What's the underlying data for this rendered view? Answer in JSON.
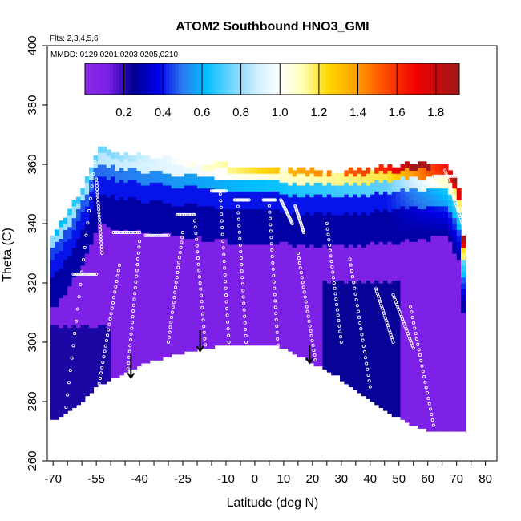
{
  "chart_data": {
    "type": "heatmap",
    "title": "ATOM2 Southbound HNO3_GMI",
    "flights_note": "Flts: 2,3,4,5,6",
    "dates_note": "MMDD: 0129,0201,0203,0205,0210",
    "xlabel": "Latitude (deg N)",
    "ylabel": "Theta (C)",
    "xlim": [
      -72,
      84
    ],
    "ylim": [
      260,
      400
    ],
    "x_ticks": [
      -70,
      -65,
      -60,
      -55,
      -50,
      -45,
      -40,
      -35,
      -30,
      -25,
      -20,
      -15,
      -10,
      -5,
      0,
      5,
      10,
      15,
      20,
      25,
      30,
      35,
      40,
      45,
      50,
      55,
      60,
      65,
      70,
      75,
      80
    ],
    "x_tick_labels": [
      "-70",
      "",
      "",
      "-55",
      "",
      "",
      "-40",
      "",
      "",
      "-25",
      "",
      "",
      "-10",
      "",
      "0",
      "",
      "10",
      "",
      "20",
      "",
      "30",
      "",
      "40",
      "",
      "50",
      "",
      "60",
      "",
      "70",
      "",
      "80"
    ],
    "y_ticks": [
      260,
      280,
      300,
      320,
      340,
      360,
      380,
      400
    ],
    "y_tick_labels": [
      "260",
      "280",
      "300",
      "320",
      "340",
      "360",
      "380",
      "400"
    ],
    "colorbar": {
      "range": [
        0,
        1.92
      ],
      "ticks": [
        0.2,
        0.4,
        0.6,
        0.8,
        1.0,
        1.2,
        1.4,
        1.6,
        1.8
      ],
      "tick_labels": [
        "0.2",
        "0.4",
        "0.6",
        "0.8",
        "1.0",
        "1.2",
        "1.4",
        "1.6",
        "1.8"
      ],
      "colors": [
        {
          "v": 0.0,
          "c": "#8a2be2"
        },
        {
          "v": 0.12,
          "c": "#7a1fe8"
        },
        {
          "v": 0.25,
          "c": "#000090"
        },
        {
          "v": 0.38,
          "c": "#0000e8"
        },
        {
          "v": 0.5,
          "c": "#2a7af0"
        },
        {
          "v": 0.62,
          "c": "#00bfff"
        },
        {
          "v": 0.75,
          "c": "#6fd3ff"
        },
        {
          "v": 0.88,
          "c": "#cdeeff"
        },
        {
          "v": 1.0,
          "c": "#ffffff"
        },
        {
          "v": 1.12,
          "c": "#ffffb0"
        },
        {
          "v": 1.25,
          "c": "#ffd700"
        },
        {
          "v": 1.4,
          "c": "#ff9a00"
        },
        {
          "v": 1.55,
          "c": "#ff4500"
        },
        {
          "v": 1.7,
          "c": "#f00000"
        },
        {
          "v": 1.92,
          "c": "#9a1a1a"
        }
      ]
    },
    "floor_boundary": [
      [
        -71,
        274
      ],
      [
        -61,
        280
      ],
      [
        -55,
        286
      ],
      [
        -48,
        289
      ],
      [
        -40,
        293
      ],
      [
        -30,
        296
      ],
      [
        -20,
        298
      ],
      [
        -10,
        300
      ],
      [
        0,
        299
      ],
      [
        8,
        299
      ],
      [
        14,
        296
      ],
      [
        20,
        293
      ],
      [
        28,
        289
      ],
      [
        36,
        283
      ],
      [
        45,
        277
      ],
      [
        55,
        272
      ],
      [
        62,
        270
      ],
      [
        70,
        270
      ],
      [
        72,
        270
      ]
    ],
    "ceiling_boundary": [
      [
        -71,
        336
      ],
      [
        -66,
        342
      ],
      [
        -60,
        352
      ],
      [
        -55,
        365
      ],
      [
        -50,
        363
      ],
      [
        -40,
        362
      ],
      [
        -30,
        361
      ],
      [
        -20,
        360
      ],
      [
        -10,
        359
      ],
      [
        0,
        358
      ],
      [
        10,
        358
      ],
      [
        20,
        357
      ],
      [
        30,
        357
      ],
      [
        40,
        358
      ],
      [
        50,
        359
      ],
      [
        60,
        360
      ],
      [
        66,
        360
      ],
      [
        70,
        352
      ],
      [
        72,
        330
      ]
    ],
    "arrows": [
      {
        "lat": -43,
        "theta_top": 296,
        "theta_bottom": 288
      },
      {
        "lat": -19,
        "theta_top": 304,
        "theta_bottom": 297
      },
      {
        "lat": 19,
        "theta_top": 299,
        "theta_bottom": 293
      }
    ],
    "flight_tracks": [
      {
        "kind": "profile",
        "lat0": -66,
        "lat1": -55,
        "theta0": 274,
        "theta1": 365
      },
      {
        "kind": "profile",
        "lat0": -55,
        "lat1": -53,
        "theta0": 355,
        "theta1": 330
      },
      {
        "kind": "level",
        "lat0": -63,
        "lat1": -55,
        "theta": 323
      },
      {
        "kind": "profile",
        "lat0": -54,
        "lat1": -47,
        "theta0": 286,
        "theta1": 326
      },
      {
        "kind": "level",
        "lat0": -49,
        "lat1": -40,
        "theta": 337
      },
      {
        "kind": "level",
        "lat0": -38,
        "lat1": -30,
        "theta": 336
      },
      {
        "kind": "profile",
        "lat0": -40,
        "lat1": -44,
        "theta0": 334,
        "theta1": 291
      },
      {
        "kind": "profile",
        "lat0": -30,
        "lat1": -25,
        "theta0": 300,
        "theta1": 337
      },
      {
        "kind": "level",
        "lat0": -27,
        "lat1": -21,
        "theta": 343
      },
      {
        "kind": "profile",
        "lat0": -21,
        "lat1": -17,
        "theta0": 343,
        "theta1": 297
      },
      {
        "kind": "level",
        "lat0": -15,
        "lat1": -10,
        "theta": 351
      },
      {
        "kind": "profile",
        "lat0": -12,
        "lat1": -9,
        "theta0": 350,
        "theta1": 300
      },
      {
        "kind": "level",
        "lat0": -7,
        "lat1": -2,
        "theta": 348
      },
      {
        "kind": "profile",
        "lat0": -6,
        "lat1": -3,
        "theta0": 348,
        "theta1": 300
      },
      {
        "kind": "level",
        "lat0": 3,
        "lat1": 7,
        "theta": 348
      },
      {
        "kind": "profile",
        "lat0": 5,
        "lat1": 8,
        "theta0": 346,
        "theta1": 299
      },
      {
        "kind": "profile",
        "lat0": 9,
        "lat1": 13,
        "theta0": 348,
        "theta1": 340
      },
      {
        "kind": "profile",
        "lat0": 14,
        "lat1": 17,
        "theta0": 346,
        "theta1": 337
      },
      {
        "kind": "profile",
        "lat0": 15,
        "lat1": 21,
        "theta0": 330,
        "theta1": 294
      },
      {
        "kind": "profile",
        "lat0": 25,
        "lat1": 30,
        "theta0": 340,
        "theta1": 300
      },
      {
        "kind": "profile",
        "lat0": 33,
        "lat1": 40,
        "theta0": 328,
        "theta1": 285
      },
      {
        "kind": "profile",
        "lat0": 42,
        "lat1": 48,
        "theta0": 318,
        "theta1": 300
      },
      {
        "kind": "profile",
        "lat0": 48,
        "lat1": 55,
        "theta0": 316,
        "theta1": 298
      },
      {
        "kind": "profile",
        "lat0": 54,
        "lat1": 62,
        "theta0": 312,
        "theta1": 272
      },
      {
        "kind": "level",
        "lat0": 62,
        "lat1": 70,
        "theta": 356
      },
      {
        "kind": "profile",
        "lat0": 66,
        "lat1": 72,
        "theta0": 358,
        "theta1": 340
      }
    ]
  }
}
